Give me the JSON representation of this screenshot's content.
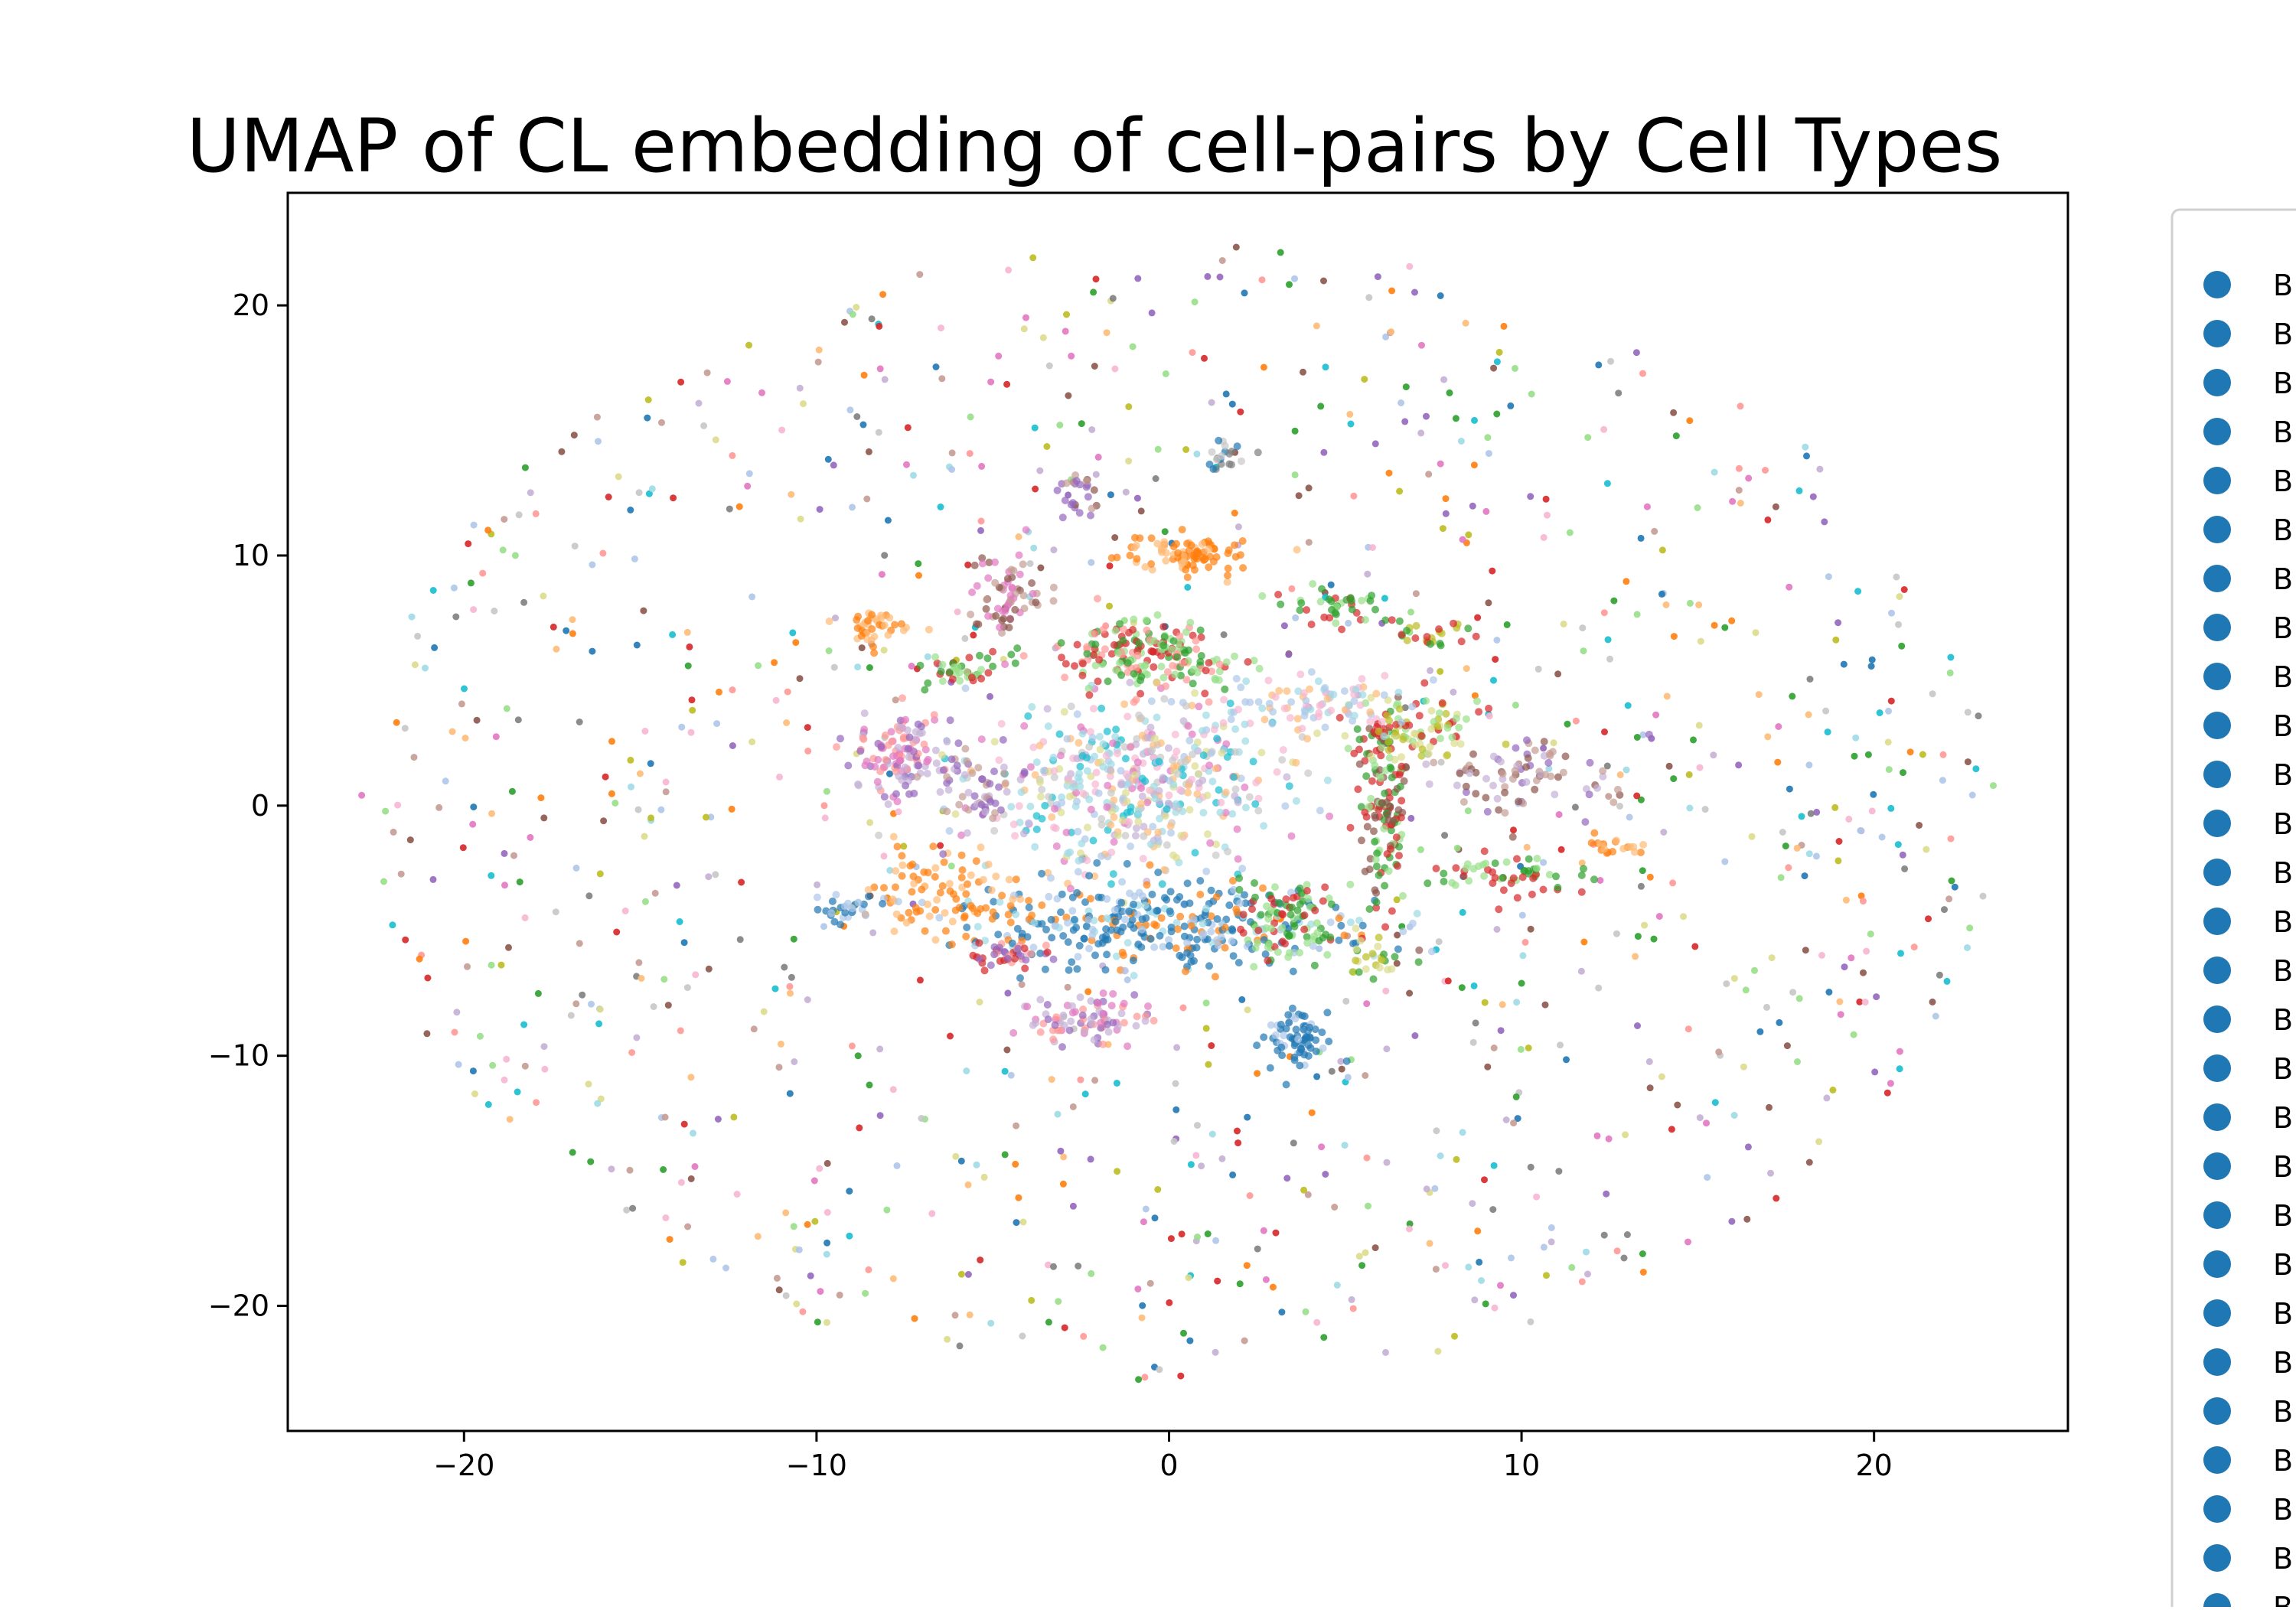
{
  "chart_data": {
    "type": "scatter",
    "title": "UMAP of CL embedding of cell-pairs  by Cell Types",
    "xlabel": "",
    "ylabel": "",
    "xlim": [
      -25,
      25.5
    ],
    "ylim": [
      -25,
      24.5
    ],
    "xticks": [
      -20,
      -10,
      0,
      10,
      20
    ],
    "yticks": [
      -20,
      -10,
      0,
      10,
      20
    ],
    "xtick_labels": [
      "−20",
      "−10",
      "0",
      "10",
      "20"
    ],
    "ytick_labels": [
      "−20",
      "−10",
      "0",
      "10",
      "20"
    ],
    "grid": false,
    "legend_position": "right, outside plot (cropped)",
    "legend_marker_color": "#1f77b4",
    "legend_entries": [
      "B",
      "B",
      "B",
      "B",
      "B",
      "B",
      "B",
      "B",
      "B",
      "B",
      "B",
      "B",
      "B",
      "B",
      "B",
      "B",
      "B",
      "B",
      "B",
      "B",
      "B",
      "B",
      "B",
      "B",
      "B",
      "B",
      "B",
      "B"
    ],
    "palette": [
      "#1f77b4",
      "#aec7e8",
      "#ff7f0e",
      "#ffbb78",
      "#2ca02c",
      "#98df8a",
      "#d62728",
      "#ff9896",
      "#9467bd",
      "#c5b0d5",
      "#8c564b",
      "#c49c94",
      "#e377c2",
      "#f7b6d2",
      "#7f7f7f",
      "#c7c7c7",
      "#bcbd22",
      "#dbdb8d",
      "#17becf",
      "#9edae5"
    ],
    "background_points": {
      "description_of_layout": "sparse ring of singleton points filling an ellipse",
      "x_range": [
        -23,
        23.5
      ],
      "y_range": [
        -23,
        22.5
      ]
    },
    "clusters": [
      {
        "x": -1.0,
        "y": 0.8,
        "sx": 2.2,
        "sy": 1.8,
        "n": 520,
        "colors": [
          1,
          18,
          17,
          13,
          12,
          19,
          9,
          3,
          15
        ]
      },
      {
        "x": -0.2,
        "y": -4.7,
        "sx": 2.8,
        "sy": 0.9,
        "n": 360,
        "colors": [
          0,
          0,
          1,
          2,
          0,
          19
        ]
      },
      {
        "x": -0.8,
        "y": 6.1,
        "sx": 1.3,
        "sy": 0.8,
        "n": 200,
        "colors": [
          4,
          5,
          7,
          6
        ]
      },
      {
        "x": 0.6,
        "y": 10.0,
        "sx": 1.0,
        "sy": 0.35,
        "n": 90,
        "colors": [
          2,
          2,
          3
        ]
      },
      {
        "x": -7.6,
        "y": 2.0,
        "sx": 0.7,
        "sy": 0.8,
        "n": 120,
        "colors": [
          8,
          9,
          7,
          12
        ]
      },
      {
        "x": -6.6,
        "y": -3.6,
        "sx": 1.0,
        "sy": 0.9,
        "n": 90,
        "colors": [
          2,
          3,
          2
        ]
      },
      {
        "x": 6.1,
        "y": 0.2,
        "sx": 0.35,
        "sy": 2.2,
        "n": 150,
        "colors": [
          4,
          6,
          5,
          10
        ]
      },
      {
        "x": 7.0,
        "y": 3.0,
        "sx": 1.0,
        "sy": 0.6,
        "n": 90,
        "colors": [
          5,
          6,
          16,
          17
        ]
      },
      {
        "x": 3.4,
        "y": -4.7,
        "sx": 0.7,
        "sy": 0.9,
        "n": 100,
        "colors": [
          4,
          6,
          5
        ]
      },
      {
        "x": -2.4,
        "y": -8.6,
        "sx": 1.0,
        "sy": 0.5,
        "n": 90,
        "colors": [
          7,
          8,
          9,
          12
        ]
      },
      {
        "x": 3.6,
        "y": -9.3,
        "sx": 0.5,
        "sy": 0.6,
        "n": 70,
        "colors": [
          0,
          1,
          0
        ]
      },
      {
        "x": -4.6,
        "y": 8.5,
        "sx": 0.5,
        "sy": 0.9,
        "n": 70,
        "colors": [
          10,
          11,
          12
        ]
      },
      {
        "x": 4.0,
        "y": 4.0,
        "sx": 1.6,
        "sy": 0.6,
        "n": 90,
        "colors": [
          1,
          19,
          13,
          3
        ]
      },
      {
        "x": 10.0,
        "y": 1.2,
        "sx": 1.5,
        "sy": 0.7,
        "n": 80,
        "colors": [
          10,
          8,
          11,
          9
        ]
      },
      {
        "x": -5.6,
        "y": 0.8,
        "sx": 0.6,
        "sy": 0.9,
        "n": 60,
        "colors": [
          8,
          9,
          11
        ]
      },
      {
        "x": 9.5,
        "y": -2.8,
        "sx": 1.2,
        "sy": 0.5,
        "n": 60,
        "colors": [
          4,
          5,
          6
        ]
      },
      {
        "x": -6.0,
        "y": 5.3,
        "sx": 0.5,
        "sy": 0.3,
        "n": 40,
        "colors": [
          4,
          5,
          6
        ]
      },
      {
        "x": 4.8,
        "y": 8.0,
        "sx": 0.7,
        "sy": 0.4,
        "n": 40,
        "colors": [
          4,
          6,
          5
        ]
      },
      {
        "x": -8.3,
        "y": 7.2,
        "sx": 0.5,
        "sy": 0.4,
        "n": 40,
        "colors": [
          3,
          2
        ]
      },
      {
        "x": -4.5,
        "y": -6.0,
        "sx": 0.6,
        "sy": 0.3,
        "n": 40,
        "colors": [
          6,
          7,
          8
        ]
      },
      {
        "x": -9.2,
        "y": -4.1,
        "sx": 0.5,
        "sy": 0.3,
        "n": 30,
        "colors": [
          0,
          1
        ]
      },
      {
        "x": 12.8,
        "y": -1.6,
        "sx": 0.4,
        "sy": 0.2,
        "n": 20,
        "colors": [
          2,
          3
        ]
      },
      {
        "x": 7.4,
        "y": 6.9,
        "sx": 0.6,
        "sy": 0.3,
        "n": 25,
        "colors": [
          4,
          6,
          16
        ]
      },
      {
        "x": 1.5,
        "y": 13.8,
        "sx": 0.4,
        "sy": 0.5,
        "n": 20,
        "colors": [
          14,
          15,
          0
        ]
      },
      {
        "x": -2.6,
        "y": 12.5,
        "sx": 0.4,
        "sy": 0.4,
        "n": 25,
        "colors": [
          10,
          11,
          8
        ]
      },
      {
        "x": 5.9,
        "y": -6.1,
        "sx": 0.4,
        "sy": 0.5,
        "n": 25,
        "colors": [
          4,
          16,
          17
        ]
      }
    ]
  }
}
